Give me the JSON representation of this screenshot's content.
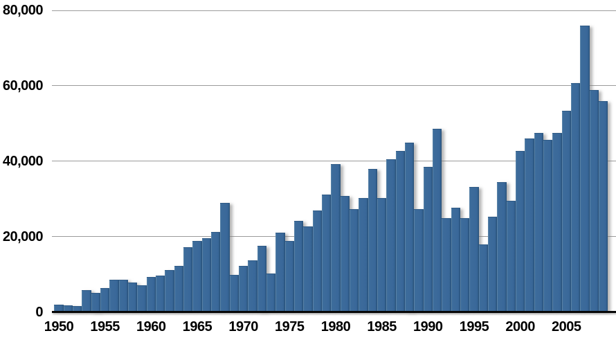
{
  "chart_data": {
    "type": "bar",
    "title": "",
    "xlabel": "",
    "ylabel": "",
    "ylim": [
      0,
      80000
    ],
    "grid": "horizontal",
    "legend": "none",
    "bar_color": "#3a689a",
    "bar_edge_color": "#2b547e",
    "gridline_color": "#9b9b9b",
    "axis_color": "#070707",
    "years": [
      1950,
      1951,
      1952,
      1953,
      1954,
      1955,
      1956,
      1957,
      1958,
      1959,
      1960,
      1961,
      1962,
      1963,
      1964,
      1965,
      1966,
      1967,
      1968,
      1969,
      1970,
      1971,
      1972,
      1973,
      1974,
      1975,
      1976,
      1977,
      1978,
      1979,
      1980,
      1981,
      1982,
      1983,
      1984,
      1985,
      1986,
      1987,
      1988,
      1989,
      1990,
      1991,
      1992,
      1993,
      1994,
      1995,
      1996,
      1997,
      1998,
      1999,
      2000,
      2001,
      2002,
      2003,
      2004,
      2005,
      2006,
      2007,
      2008,
      2009
    ],
    "values": [
      1900,
      1800,
      1600,
      5700,
      5000,
      6300,
      8500,
      8600,
      7800,
      7100,
      9300,
      9600,
      11100,
      12300,
      17200,
      18800,
      19500,
      21200,
      29000,
      9900,
      12200,
      13600,
      17500,
      10200,
      21100,
      18900,
      24200,
      22700,
      26900,
      31200,
      39300,
      30700,
      27300,
      30200,
      38000,
      30200,
      40500,
      42800,
      45000,
      27200,
      38500,
      48600,
      24900,
      27700,
      24900,
      33200,
      17900,
      25200,
      34400,
      29500,
      42700,
      46100,
      47400,
      45600,
      47400,
      53400,
      60800,
      76000,
      58900,
      55900
    ],
    "y_ticks": [
      {
        "value": 80000,
        "label": "80,000"
      },
      {
        "value": 60000,
        "label": "60,000"
      },
      {
        "value": 40000,
        "label": "40,000"
      },
      {
        "value": 20000,
        "label": "20,000"
      },
      {
        "value": 0,
        "label": "0"
      }
    ],
    "x_ticks": [
      {
        "year": 1950,
        "label": "1950"
      },
      {
        "year": 1955,
        "label": "1955"
      },
      {
        "year": 1960,
        "label": "1960"
      },
      {
        "year": 1965,
        "label": "1965"
      },
      {
        "year": 1970,
        "label": "1970"
      },
      {
        "year": 1975,
        "label": "1975"
      },
      {
        "year": 1980,
        "label": "1980"
      },
      {
        "year": 1985,
        "label": "1985"
      },
      {
        "year": 1990,
        "label": "1990"
      },
      {
        "year": 1995,
        "label": "1995"
      },
      {
        "year": 2000,
        "label": "2000"
      },
      {
        "year": 2005,
        "label": "2005"
      }
    ]
  }
}
